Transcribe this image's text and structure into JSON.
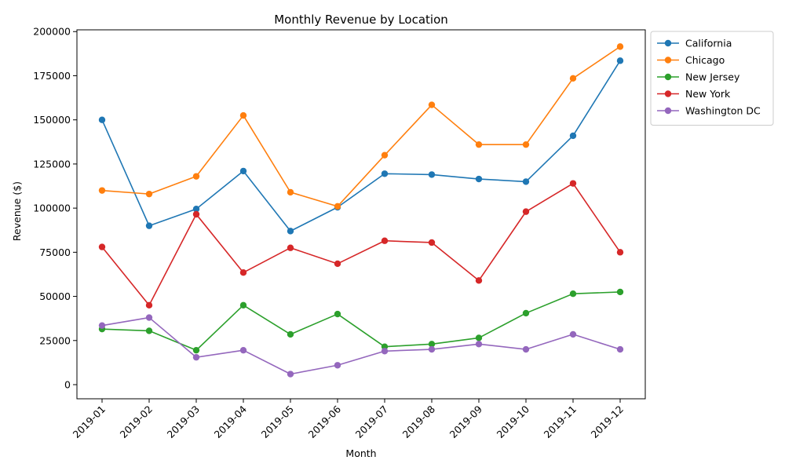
{
  "chart_data": {
    "type": "line",
    "title": "Monthly Revenue by Location",
    "xlabel": "Month",
    "ylabel": "Revenue ($)",
    "categories": [
      "2019-01",
      "2019-02",
      "2019-03",
      "2019-04",
      "2019-05",
      "2019-06",
      "2019-07",
      "2019-08",
      "2019-09",
      "2019-10",
      "2019-11",
      "2019-12"
    ],
    "ylim": [
      -8000,
      201000
    ],
    "yticks": [
      0,
      25000,
      50000,
      75000,
      100000,
      125000,
      150000,
      175000,
      200000
    ],
    "ytick_labels": [
      "0",
      "25000",
      "50000",
      "75000",
      "100000",
      "125000",
      "150000",
      "175000",
      "200000"
    ],
    "legend_position": "outside-top-right",
    "grid": false,
    "series": [
      {
        "name": "California",
        "color": "#1f77b4",
        "values": [
          150000,
          90000,
          99500,
          121000,
          87000,
          100500,
          119500,
          119000,
          116500,
          115000,
          141000,
          183500
        ]
      },
      {
        "name": "Chicago",
        "color": "#ff7f0e",
        "values": [
          110000,
          108000,
          118000,
          152500,
          109000,
          101000,
          130000,
          158500,
          136000,
          136000,
          173500,
          191500
        ]
      },
      {
        "name": "New Jersey",
        "color": "#2ca02c",
        "values": [
          31500,
          30500,
          19500,
          45000,
          28500,
          40000,
          21500,
          23000,
          26500,
          40500,
          51500,
          52500
        ]
      },
      {
        "name": "New York",
        "color": "#d62728",
        "values": [
          78000,
          45000,
          96500,
          63500,
          77500,
          68500,
          81500,
          80500,
          59000,
          98000,
          114000,
          75000
        ]
      },
      {
        "name": "Washington DC",
        "color": "#9467bd",
        "values": [
          33500,
          38000,
          15500,
          19500,
          6000,
          11000,
          19000,
          20000,
          23000,
          20000,
          28500,
          20000
        ]
      }
    ]
  }
}
